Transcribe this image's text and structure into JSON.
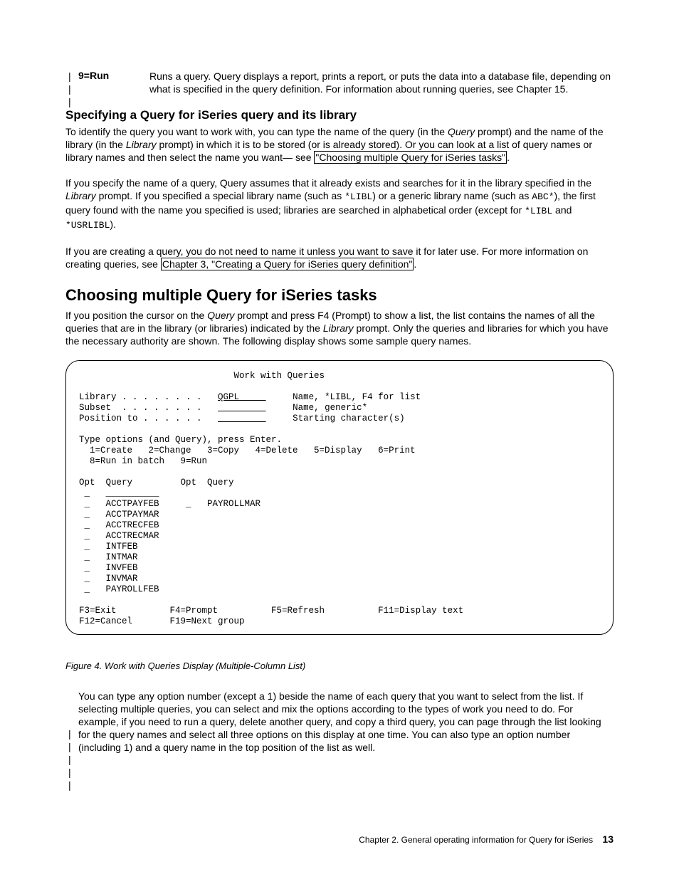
{
  "definition": {
    "term": "9=Run",
    "desc": "Runs a query. Query displays a report, prints a report, or puts the data into a database file, depending on what is specified in the query definition. For information about running queries, see Chapter 15."
  },
  "section1": {
    "heading": "Specifying a Query for iSeries query and its library",
    "p1_a": "To identify the query you want to work with, you can type the name of the query (in the ",
    "p1_b": " prompt) and the name of the library (in the ",
    "p1_c": " prompt) in which it is to be stored (or is already stored). Or you can look at a list of query names or library names and then select the name you want— see ",
    "p1_link": "\"Choosing multiple Query for iSeries tasks\"",
    "p1_d": ".",
    "query_word": "Query",
    "library_word": "Library",
    "p2_a": "If you specify the name of a query, Query assumes that it already exists and searches for it in the library specified in the ",
    "p2_b": " prompt. If you specified a special library name (such as ",
    "p2_c": ") or a generic library name (such as ",
    "p2_d": "), the first query found with the name you specified is used; libraries are searched in alphabetical order (except for ",
    "p2_e": " and ",
    "p2_f": ").",
    "libl": "*LIBL",
    "abc": "ABC*",
    "usrlibl": "*USRLIBL",
    "p3_a": "If you are creating a query, you do not need to name it unless you want to save it for later use. For more information on creating queries, see ",
    "p3_link": "Chapter 3, \"Creating a Query for iSeries query definition\"",
    "p3_b": "."
  },
  "section2": {
    "heading": "Choosing multiple Query for iSeries tasks",
    "p1_a": "If you position the cursor on the ",
    "p1_b": " prompt and press F4 (Prompt) to show a list, the list contains the names of all the queries that are in the library (or libraries) indicated by the ",
    "p1_c": " prompt. Only the queries and libraries for which you have the necessary authority are shown. The following display shows some sample query names."
  },
  "terminal": {
    "title": "Work with Queries",
    "lib_label": "Library . . . . . . . .",
    "lib_val": "QGPL",
    "lib_hint": "Name, *LIBL, F4 for list",
    "sub_label": "Subset  . . . . . . . .",
    "sub_val": "         ",
    "sub_hint": "Name, generic*",
    "pos_label": "Position to . . . . . .",
    "pos_val": "         ",
    "pos_hint": "Starting character(s)",
    "instr1": "Type options (and Query), press Enter.",
    "instr2": "  1=Create   2=Change   3=Copy   4=Delete   5=Display   6=Print",
    "instr3": "  8=Run in batch   9=Run",
    "hdr": "Opt  Query         Opt  Query",
    "row_blank": " _   __________",
    "rows_l": [
      "ACCTPAYFEB",
      "ACCTPAYMAR",
      "ACCTRECFEB",
      "ACCTRECMAR",
      "INTFEB",
      "INTMAR",
      "INVFEB",
      "INVMAR",
      "PAYROLLFEB"
    ],
    "rows_r": [
      "PAYROLLMAR"
    ],
    "fkeys1": "F3=Exit          F4=Prompt          F5=Refresh          F11=Display text",
    "fkeys2": "F12=Cancel       F19=Next group"
  },
  "figcap": "Figure 4. Work with Queries Display (Multiple-Column List)",
  "closing": {
    "p": "You can type any option number (except a 1) beside the name of each query that you want to select from the list. If selecting multiple queries, you can select and mix the options according to the types of work you need to do. For example, if you need to run a query, delete another query, and copy a third query, you can page through the list looking for the query names and select all three options on this display at one time. You can also type an option number (including 1) and a query name in the top position of the list as well."
  },
  "footer": {
    "chapter": "Chapter 2. General operating information for Query for iSeries",
    "page": "13"
  },
  "bars": {
    "top": "|\n|\n|",
    "bottom": "|\n|\n|\n|\n|"
  }
}
